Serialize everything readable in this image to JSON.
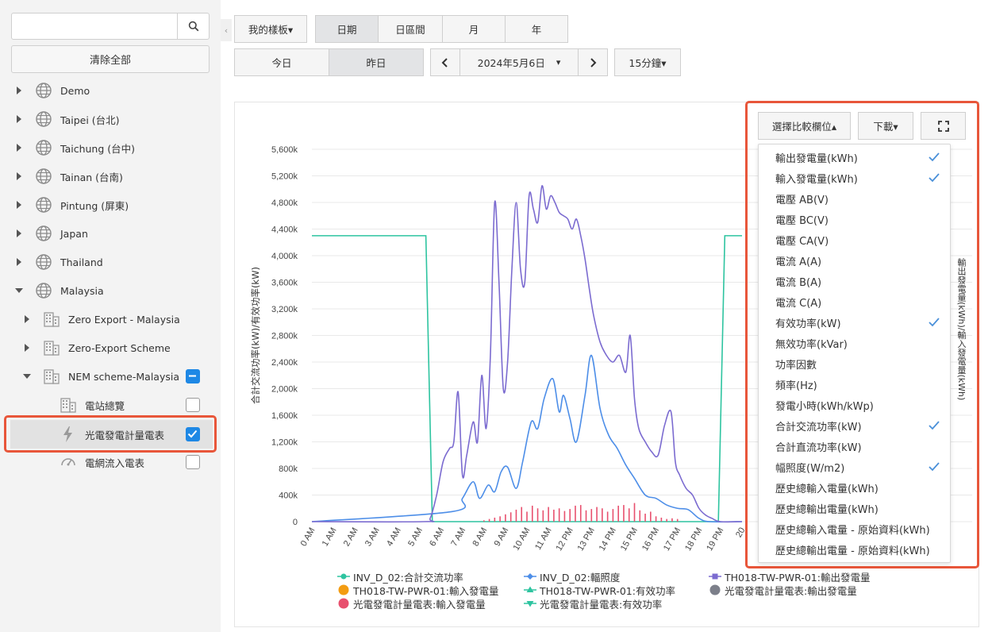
{
  "sidebar": {
    "search": {
      "value": "",
      "placeholder": ""
    },
    "clear_all_label": "清除全部",
    "collapse_glyph": "‹",
    "tree": [
      {
        "label": "Demo",
        "icon": "globe-icon",
        "expanded": false
      },
      {
        "label": "Taipei (台北)",
        "icon": "globe-icon",
        "expanded": false
      },
      {
        "label": "Taichung (台中)",
        "icon": "globe-icon",
        "expanded": false
      },
      {
        "label": "Tainan (台南)",
        "icon": "globe-icon",
        "expanded": false
      },
      {
        "label": "Pintung (屏東)",
        "icon": "globe-icon",
        "expanded": false
      },
      {
        "label": "Japan",
        "icon": "globe-icon",
        "expanded": false
      },
      {
        "label": "Thailand",
        "icon": "globe-icon",
        "expanded": false
      },
      {
        "label": "Malaysia",
        "icon": "globe-icon",
        "expanded": true
      },
      {
        "label": "Zero Export - Malaysia",
        "icon": "building-icon",
        "expanded": false
      },
      {
        "label": "Zero-Export Scheme",
        "icon": "building-icon",
        "expanded": false
      },
      {
        "label": "NEM scheme-Malaysia",
        "icon": "building-icon",
        "expanded": true,
        "checkbox": "partial"
      },
      {
        "label": "電站總覽",
        "icon": "building-icon",
        "checkbox": "unchecked"
      },
      {
        "label": "光電發電計量電表",
        "icon": "lightning-icon",
        "checkbox": "checked",
        "selected": true
      },
      {
        "label": "電網流入電表",
        "icon": "gauge-icon",
        "checkbox": "unchecked"
      }
    ]
  },
  "toolbar": {
    "dashboard_label": "我的樣板▾",
    "range_tabs": [
      "日期",
      "日區間",
      "月",
      "年"
    ],
    "active_range": "日期",
    "today_label": "今日",
    "yesterday_label": "昨日",
    "prev_glyph": "‹",
    "next_glyph": "›",
    "date_value": "2024年5月6日",
    "date_caret": "▾",
    "interval_label": "15分鐘▾"
  },
  "panel": {
    "compare_label": "選擇比較欄位▴",
    "download_label": "下載▾",
    "fullscreen_icon": "fullscreen-icon",
    "menu_items": [
      {
        "label": "輸出發電量(kWh)",
        "checked": true
      },
      {
        "label": "輸入發電量(kWh)",
        "checked": true
      },
      {
        "label": "電壓 AB(V)",
        "checked": false
      },
      {
        "label": "電壓 BC(V)",
        "checked": false
      },
      {
        "label": "電壓 CA(V)",
        "checked": false
      },
      {
        "label": "電流 A(A)",
        "checked": false
      },
      {
        "label": "電流 B(A)",
        "checked": false
      },
      {
        "label": "電流 C(A)",
        "checked": false
      },
      {
        "label": "有效功率(kW)",
        "checked": true
      },
      {
        "label": "無效功率(kVar)",
        "checked": false
      },
      {
        "label": "功率因數",
        "checked": false
      },
      {
        "label": "頻率(Hz)",
        "checked": false
      },
      {
        "label": "發電小時(kWh/kWp)",
        "checked": false
      },
      {
        "label": "合計交流功率(kW)",
        "checked": true
      },
      {
        "label": "合計直流功率(kW)",
        "checked": false
      },
      {
        "label": "幅照度(W/m2)",
        "checked": true
      },
      {
        "label": "歷史總輸入電量(kWh)",
        "checked": false
      },
      {
        "label": "歷史總輸出電量(kWh)",
        "checked": false
      },
      {
        "label": "歷史總輸入電量 - 原始資料(kWh)",
        "checked": false
      },
      {
        "label": "歷史總輸出電量 - 原始資料(kWh)",
        "checked": false
      }
    ]
  },
  "colors": {
    "accent_blue": "#1e88e5",
    "check_blue": "#4a90d9",
    "highlight_red": "#e8563a",
    "teal": "#2ec4a0",
    "purple": "#7b6bd0",
    "blue_series": "#4d8ee8",
    "pink": "#e8506e",
    "orange": "#f39c12",
    "gray": "#7c7f8a"
  },
  "chart_data": {
    "type": "line",
    "ylabel": "合計交流功率(kW)/有效功率(kW)",
    "ylabel_right": "輸出發電量(kWh)/輸入發電量(kWh)",
    "ylim": [
      0,
      5600000
    ],
    "y_ticks": [
      "0",
      "400k",
      "800k",
      "1,200k",
      "1,600k",
      "2,000k",
      "2,400k",
      "2,800k",
      "3,200k",
      "3,600k",
      "4,000k",
      "4,400k",
      "4,800k",
      "5,200k",
      "5,600k"
    ],
    "x_ticks": [
      "0 AM",
      "1 AM",
      "2 AM",
      "3 AM",
      "4 AM",
      "5 AM",
      "6 AM",
      "7 AM",
      "8 AM",
      "9 AM",
      "10 AM",
      "11 AM",
      "12 PM",
      "13 PM",
      "14 PM",
      "15 PM",
      "16 PM",
      "17 PM",
      "18 PM",
      "19 PM",
      "20"
    ],
    "grid": true,
    "legend_position": "bottom",
    "series": [
      {
        "name": "INV_D_02:合計交流功率",
        "color": "#2ec4a0",
        "marker": "circle",
        "x": [
          0,
          5.3,
          5.6,
          18.9,
          19.2,
          20
        ],
        "y": [
          4300000,
          4300000,
          0,
          0,
          4300000,
          4300000
        ]
      },
      {
        "name": "INV_D_02:輻照度",
        "color": "#4d8ee8",
        "marker": "diamond",
        "x": [
          0,
          6.5,
          7,
          7.5,
          7.8,
          8.2,
          8.5,
          8.8,
          9.1,
          9.5,
          9.8,
          10.2,
          10.5,
          10.8,
          11.2,
          11.5,
          11.7,
          12,
          12.3,
          12.7,
          13,
          13.4,
          13.8,
          14.2,
          14.6,
          15,
          15.5,
          16,
          16.5,
          17,
          17.5,
          18,
          18.5,
          20
        ],
        "y": [
          0,
          150000,
          350000,
          600000,
          350000,
          550000,
          450000,
          750000,
          820000,
          500000,
          900000,
          1500000,
          1400000,
          1850000,
          2150000,
          1650000,
          1900000,
          1550000,
          1200000,
          1900000,
          2500000,
          1700000,
          1300000,
          1100000,
          850000,
          650000,
          400000,
          350000,
          250000,
          200000,
          180000,
          50000,
          0,
          0
        ]
      },
      {
        "name": "TH018-TW-PWR-01:輸出發電量",
        "color": "#7b6bd0",
        "marker": "square",
        "x": [
          0,
          5.2,
          5.5,
          5.8,
          6.1,
          6.4,
          6.6,
          6.8,
          7,
          7.2,
          7.5,
          7.7,
          7.9,
          8.1,
          8.3,
          8.5,
          8.7,
          8.9,
          9.1,
          9.3,
          9.5,
          9.7,
          9.9,
          10.1,
          10.3,
          10.5,
          10.7,
          10.9,
          11.1,
          11.3,
          11.5,
          11.7,
          11.9,
          12.1,
          12.3,
          12.5,
          12.7,
          12.9,
          13.1,
          13.4,
          13.7,
          14,
          14.3,
          14.6,
          14.8,
          15,
          15.2,
          15.5,
          15.8,
          16.1,
          16.4,
          16.7,
          16.9,
          17.1,
          17.4,
          17.7,
          18,
          18.3,
          18.6,
          19,
          20
        ],
        "y": [
          0,
          0,
          50000,
          400000,
          900000,
          1100000,
          1200000,
          1950000,
          700000,
          1000000,
          1500000,
          1200000,
          2200000,
          1400000,
          2500000,
          4800000,
          3600000,
          2000000,
          2400000,
          3800000,
          4800000,
          3800000,
          3600000,
          4900000,
          4700000,
          4500000,
          5050000,
          4700000,
          4900000,
          4800000,
          4650000,
          4600000,
          4550000,
          4400000,
          4550000,
          4300000,
          3950000,
          3500000,
          3100000,
          2700000,
          2500000,
          2400000,
          2500000,
          2250000,
          2800000,
          1850000,
          1400000,
          1200000,
          1050000,
          1000000,
          1450000,
          1650000,
          900000,
          700000,
          500000,
          400000,
          200000,
          100000,
          50000,
          0,
          0
        ]
      },
      {
        "name": "TH018-TW-PWR-01:輸入發電量",
        "color": "#f39c12",
        "marker": "circle"
      },
      {
        "name": "TH018-TW-PWR-01:有效功率",
        "color": "#2ec4a0",
        "marker": "triangle"
      },
      {
        "name": "光電發電計量電表:輸出發電量",
        "color": "#7c7f8a",
        "marker": "circle"
      },
      {
        "name": "光電發電計量電表:輸入發電量",
        "color": "#e8506e",
        "marker": "circle",
        "type": "bar",
        "x": [
          8.0,
          8.25,
          8.5,
          8.75,
          9.0,
          9.25,
          9.5,
          9.75,
          10.0,
          10.25,
          10.5,
          10.75,
          11.0,
          11.25,
          11.5,
          11.75,
          12.0,
          12.25,
          12.5,
          12.75,
          13.0,
          13.25,
          13.5,
          13.75,
          14.0,
          14.25,
          14.5,
          14.75,
          15.0,
          15.25,
          15.5,
          15.75,
          16.0,
          16.25,
          16.5,
          16.75,
          17.0
        ],
        "y": [
          20000,
          40000,
          60000,
          80000,
          110000,
          140000,
          180000,
          220000,
          150000,
          240000,
          200000,
          170000,
          220000,
          180000,
          200000,
          160000,
          190000,
          240000,
          250000,
          170000,
          190000,
          220000,
          200000,
          150000,
          190000,
          240000,
          250000,
          200000,
          280000,
          170000,
          120000,
          150000,
          80000,
          60000,
          40000,
          50000,
          40000
        ]
      },
      {
        "name": "光電發電計量電表:有效功率",
        "color": "#2ec4a0",
        "marker": "triangle-down"
      }
    ]
  }
}
